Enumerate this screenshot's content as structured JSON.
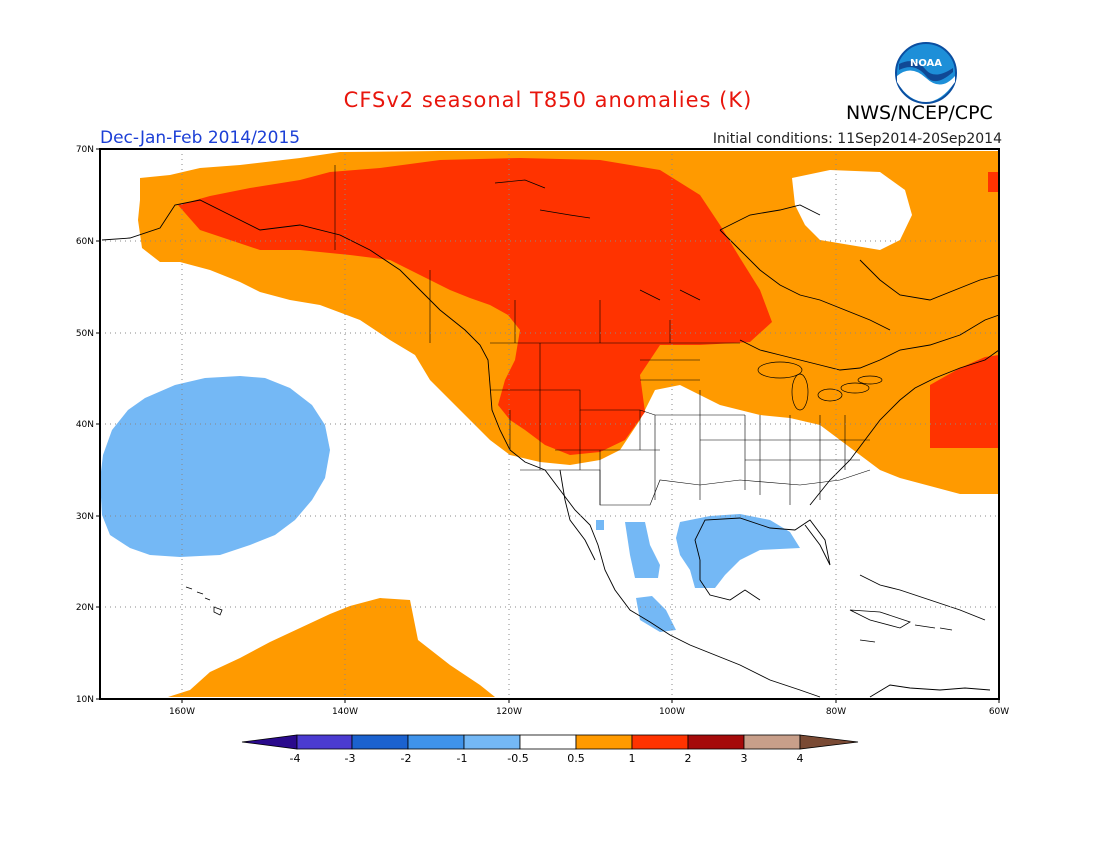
{
  "header": {
    "title": "CFSv2 seasonal T850 anomalies (K)",
    "agency": "NWS/NCEP/CPC",
    "season": "Dec-Jan-Feb 2014/2015",
    "initial_conditions": "Initial conditions: 11Sep2014-20Sep2014",
    "logo_text": "NOAA"
  },
  "map": {
    "variable": "T850 anomaly",
    "units": "K",
    "lon_range": [
      -170,
      -60
    ],
    "lat_range": [
      10,
      70
    ],
    "lat_labels": [
      "70N",
      "60N",
      "50N",
      "40N",
      "30N",
      "20N",
      "10N"
    ],
    "lon_labels": [
      "160W",
      "140W",
      "120W",
      "100W",
      "80W",
      "60W"
    ]
  },
  "colorbar": {
    "levels": [
      "-4",
      "-3",
      "-2",
      "-1",
      "-0.5",
      "0.5",
      "1",
      "2",
      "3",
      "4"
    ],
    "colors": [
      "#2a0a8c",
      "#4b3bd0",
      "#1b62cf",
      "#3f93ea",
      "#74b8f5",
      "#ffffff",
      "#ff9a00",
      "#ff3300",
      "#a50a0a",
      "#c89f8a",
      "#7a4a34"
    ]
  }
}
